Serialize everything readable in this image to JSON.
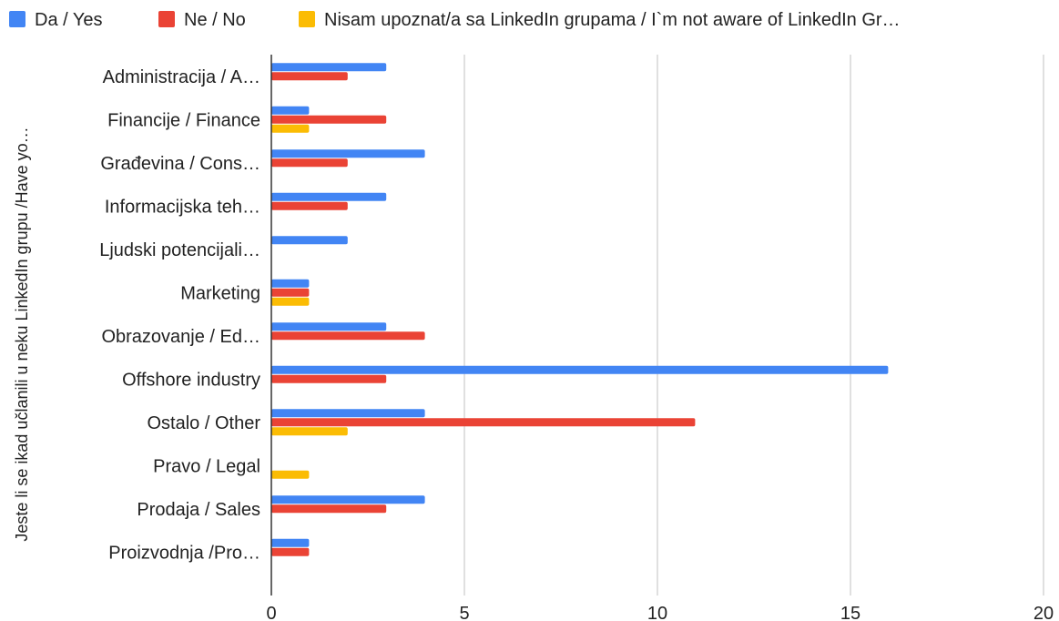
{
  "chart_data": {
    "type": "bar",
    "orientation": "horizontal",
    "categories": [
      "Administracija / A…",
      "Financije / Finance",
      "Građevina / Cons…",
      "Informacijska teh…",
      "Ljudski potencijali…",
      "Marketing",
      "Obrazovanje / Ed…",
      "Offshore industry",
      "Ostalo / Other",
      "Pravo / Legal",
      "Prodaja / Sales",
      "Proizvodnja /Pro…"
    ],
    "series": [
      {
        "name": "Da / Yes",
        "color": "#4285f4",
        "values": [
          3,
          1,
          4,
          3,
          2,
          1,
          3,
          16,
          4,
          0,
          4,
          1
        ]
      },
      {
        "name": "Ne / No",
        "color": "#ea4335",
        "values": [
          2,
          3,
          2,
          2,
          0,
          1,
          4,
          3,
          11,
          0,
          3,
          1
        ]
      },
      {
        "name": "Nisam upoznat/a sa LinkedIn grupama / I`m not aware of LinkedIn Gr…",
        "color": "#fbbc04",
        "values": [
          0,
          1,
          0,
          0,
          0,
          1,
          0,
          0,
          2,
          1,
          0,
          0
        ]
      }
    ],
    "xlim": [
      0,
      20
    ],
    "xticks": [
      "0",
      "5",
      "10",
      "15",
      "20"
    ],
    "ylabel": "Jeste li se ikad učlanili u neku LinkedIn grupu /Have yo…",
    "xlabel": "",
    "grid": true,
    "legend_position": "top-left"
  }
}
